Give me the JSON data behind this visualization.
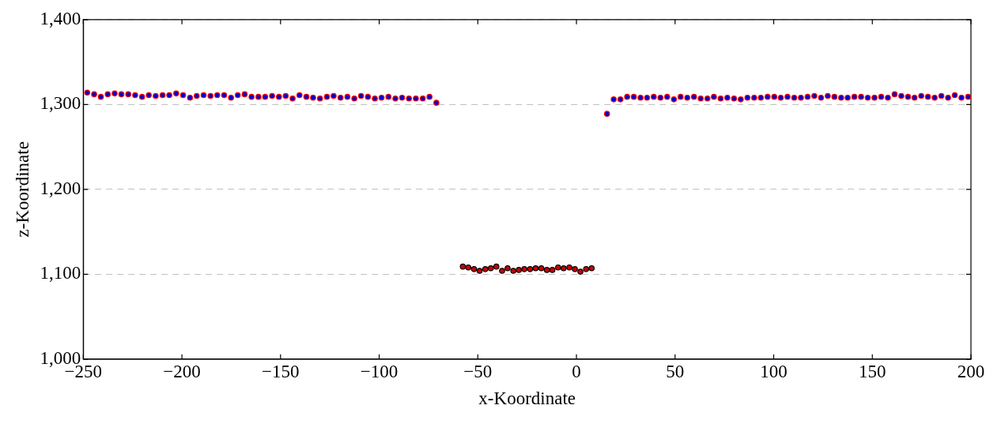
{
  "chart_data": {
    "type": "scatter",
    "xlabel": "x-Koordinate",
    "ylabel": "z-Koordinate",
    "xlim": [
      -250,
      200
    ],
    "ylim": [
      1000,
      1400
    ],
    "xticks": [
      {
        "value": -250,
        "label": "−250"
      },
      {
        "value": -200,
        "label": "−200"
      },
      {
        "value": -150,
        "label": "−150"
      },
      {
        "value": -100,
        "label": "−100"
      },
      {
        "value": -50,
        "label": "−50"
      },
      0,
      50,
      100,
      150,
      200
    ],
    "yticks": [
      {
        "value": 1000,
        "label": "1,000"
      },
      {
        "value": 1100,
        "label": "1,100"
      },
      {
        "value": 1200,
        "label": "1,200"
      },
      {
        "value": 1300,
        "label": "1,300"
      },
      {
        "value": 1400,
        "label": "1,400"
      }
    ],
    "grid": "y",
    "legend": false,
    "marker": "circle",
    "series": [
      {
        "color": "#0000cc",
        "x": [
          -248,
          -244.5,
          -241.1,
          -237.6,
          -234.1,
          -230.7,
          -227.2,
          -223.7,
          -220.2,
          -216.8,
          -213.3,
          -209.8,
          -206.4,
          -202.9,
          -199.4,
          -195.9,
          -192.5,
          -189.0,
          -185.5,
          -182.1,
          -178.6,
          -175.1,
          -171.7,
          -168.2,
          -164.7,
          -161.2,
          -157.8,
          -154.3,
          -150.8,
          -147.4,
          -143.9,
          -140.4,
          -136.9,
          -133.5,
          -130.0,
          -126.5,
          -123.1,
          -119.6,
          -116.1,
          -112.6,
          -109.2,
          -105.7,
          -102.2,
          -98.8,
          -95.3,
          -91.8,
          -88.4,
          -84.9,
          -81.4,
          -77.9,
          -74.5,
          -71.0,
          15.5,
          18.9,
          22.3,
          25.7,
          29.1,
          32.5,
          35.8,
          39.2,
          42.6,
          46.0,
          49.4,
          52.8,
          56.2,
          59.6,
          63.0,
          66.4,
          69.7,
          73.1,
          76.5,
          79.9,
          83.3,
          86.7,
          90.1,
          93.5,
          96.9,
          100.3,
          103.6,
          107.0,
          110.4,
          113.8,
          117.2,
          120.6,
          124.0,
          127.4,
          130.8,
          134.2,
          137.5,
          140.9,
          144.3,
          147.7,
          151.1,
          154.5,
          157.9,
          161.3,
          164.7,
          168.1,
          171.4,
          174.8,
          178.2,
          181.6,
          185.0,
          188.4,
          191.8,
          195.2,
          198.6
        ],
        "values": [
          1314,
          1312,
          1309,
          1312,
          1313,
          1312,
          1312,
          1311,
          1309,
          1311,
          1310,
          1311,
          1311,
          1313,
          1311,
          1308,
          1310,
          1311,
          1310,
          1311,
          1311,
          1308,
          1311,
          1312,
          1309,
          1309,
          1309,
          1310,
          1309,
          1310,
          1307,
          1311,
          1309,
          1308,
          1307,
          1309,
          1310,
          1308,
          1309,
          1307,
          1310,
          1309,
          1307,
          1308,
          1309,
          1307,
          1308,
          1307,
          1307,
          1307,
          1309,
          1302,
          1289,
          1306,
          1306,
          1309,
          1309,
          1308,
          1308,
          1309,
          1308,
          1309,
          1306,
          1309,
          1308,
          1309,
          1307,
          1307,
          1309,
          1307,
          1308,
          1307,
          1306,
          1308,
          1308,
          1308,
          1309,
          1309,
          1308,
          1309,
          1308,
          1308,
          1309,
          1310,
          1308,
          1310,
          1309,
          1308,
          1308,
          1309,
          1309,
          1308,
          1308,
          1309,
          1308,
          1312,
          1310,
          1309,
          1308,
          1310,
          1309,
          1308,
          1310,
          1308,
          1311,
          1308,
          1309
        ]
      },
      {
        "color": "#cc0000",
        "x": [
          -57.6,
          -54.8,
          -51.9,
          -49.1,
          -46.2,
          -43.4,
          -40.6,
          -37.7,
          -34.9,
          -32.0,
          -29.2,
          -26.4,
          -23.5,
          -20.7,
          -17.8,
          -15.0,
          -12.2,
          -9.3,
          -6.5,
          -3.6,
          -0.8,
          2.0,
          4.9,
          7.7
        ],
        "values": [
          1109,
          1108,
          1106,
          1104,
          1106,
          1107,
          1109,
          1104,
          1107,
          1104,
          1105,
          1106,
          1106,
          1107,
          1107,
          1105,
          1105,
          1108,
          1107,
          1108,
          1106,
          1103,
          1106,
          1107
        ]
      }
    ]
  }
}
